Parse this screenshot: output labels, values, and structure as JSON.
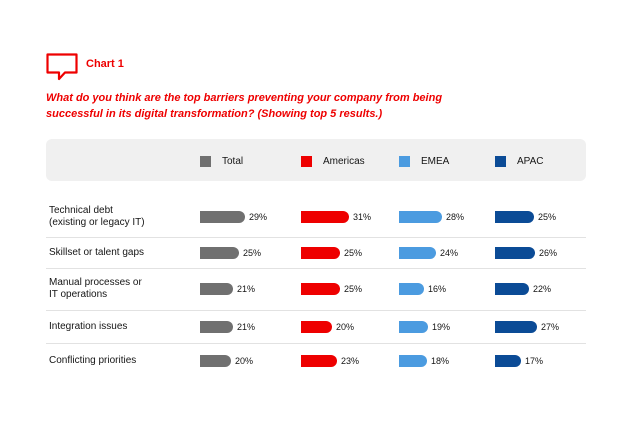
{
  "header": {
    "chart_label": "Chart 1",
    "question": "What do you think are the top barriers preventing your company from being successful in its digital transformation? (Showing top 5 results.)",
    "icon": "speech-bubble-icon"
  },
  "colors": {
    "accent": "#ee0000",
    "Total": "#707070",
    "Americas": "#ee0000",
    "EMEA": "#4b9be0",
    "APAC": "#0b4b96"
  },
  "chart_data": {
    "type": "bar",
    "orientation": "horizontal",
    "categories": [
      "Technical debt\n(existing or legacy IT)",
      "Skillset or talent gaps",
      "Manual processes or\nIT operations",
      "Integration issues",
      "Conflicting priorities"
    ],
    "series": [
      {
        "name": "Total",
        "values": [
          29,
          25,
          21,
          21,
          20
        ]
      },
      {
        "name": "Americas",
        "values": [
          31,
          25,
          25,
          20,
          23
        ]
      },
      {
        "name": "EMEA",
        "values": [
          28,
          24,
          16,
          19,
          18
        ]
      },
      {
        "name": "APAC",
        "values": [
          25,
          26,
          22,
          27,
          17
        ]
      }
    ],
    "value_suffix": "%",
    "legend_placement": "top",
    "grid": false
  }
}
